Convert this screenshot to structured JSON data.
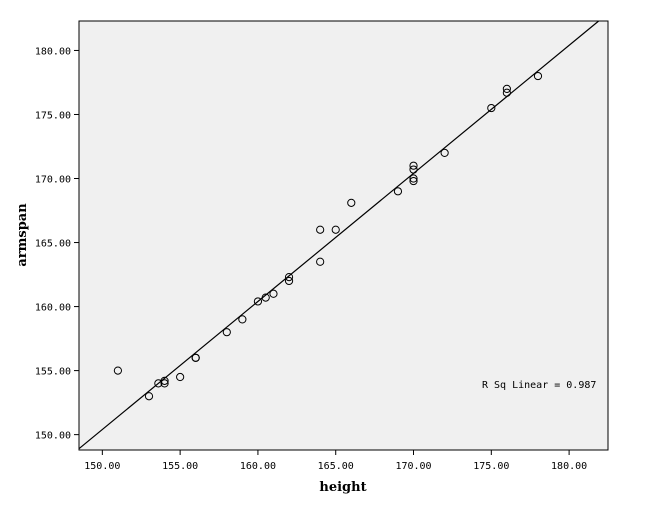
{
  "chart_data": {
    "type": "scatter",
    "xlabel": "height",
    "ylabel": "armspan",
    "xlim": [
      148.5,
      182.5
    ],
    "ylim": [
      148.8,
      182.3
    ],
    "x_ticks": [
      150,
      155,
      160,
      165,
      170,
      175,
      180
    ],
    "y_ticks": [
      150,
      155,
      160,
      165,
      170,
      175,
      180
    ],
    "x_tick_labels": [
      "150.00",
      "155.00",
      "160.00",
      "165.00",
      "170.00",
      "175.00",
      "180.00"
    ],
    "y_tick_labels": [
      "150.00",
      "155.00",
      "160.00",
      "165.00",
      "170.00",
      "175.00",
      "180.00"
    ],
    "grid": false,
    "background": "#f0f0f0",
    "marker": "open-circle",
    "points": [
      {
        "x": 151.0,
        "y": 155.0
      },
      {
        "x": 153.0,
        "y": 153.0
      },
      {
        "x": 153.6,
        "y": 154.0
      },
      {
        "x": 154.0,
        "y": 154.2
      },
      {
        "x": 154.0,
        "y": 154.0
      },
      {
        "x": 155.0,
        "y": 154.5
      },
      {
        "x": 156.0,
        "y": 156.0
      },
      {
        "x": 156.0,
        "y": 156.0
      },
      {
        "x": 158.0,
        "y": 158.0
      },
      {
        "x": 159.0,
        "y": 159.0
      },
      {
        "x": 160.0,
        "y": 160.4
      },
      {
        "x": 160.5,
        "y": 160.7
      },
      {
        "x": 161.0,
        "y": 161.0
      },
      {
        "x": 162.0,
        "y": 162.0
      },
      {
        "x": 162.0,
        "y": 162.3
      },
      {
        "x": 164.0,
        "y": 166.0
      },
      {
        "x": 164.0,
        "y": 163.5
      },
      {
        "x": 165.0,
        "y": 166.0
      },
      {
        "x": 166.0,
        "y": 168.1
      },
      {
        "x": 169.0,
        "y": 169.0
      },
      {
        "x": 170.0,
        "y": 171.0
      },
      {
        "x": 170.0,
        "y": 170.7
      },
      {
        "x": 170.0,
        "y": 170.0
      },
      {
        "x": 170.0,
        "y": 169.8
      },
      {
        "x": 172.0,
        "y": 172.0
      },
      {
        "x": 175.0,
        "y": 175.5
      },
      {
        "x": 176.0,
        "y": 177.0
      },
      {
        "x": 176.0,
        "y": 176.7
      },
      {
        "x": 178.0,
        "y": 178.0
      }
    ],
    "fit_line": {
      "slope": 1.0,
      "intercept": 0.4
    },
    "annotation": "R Sq Linear = 0.987"
  }
}
